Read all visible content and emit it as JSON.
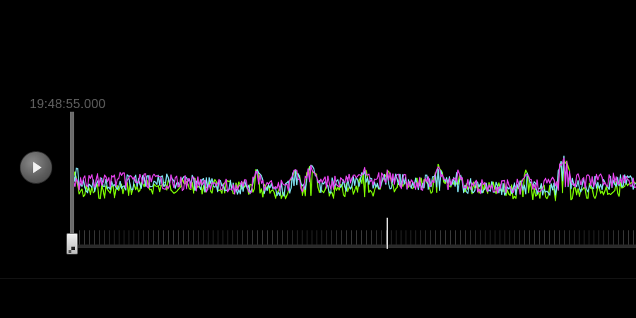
{
  "player": {
    "current_time": "19:48:55.000",
    "play_icon": "play-icon",
    "playhead_handle_icon": "drag-handle-icon"
  },
  "waveform": {
    "channels": [
      {
        "color": "#7CFC00"
      },
      {
        "color": "#7FE0F0"
      },
      {
        "color": "#E040E8"
      }
    ]
  },
  "colors": {
    "background": "#000000",
    "timestamp": "#5e5e5e",
    "timeline_tick": "#3a3a3a",
    "timeline_marker": "#d8d8d8"
  }
}
